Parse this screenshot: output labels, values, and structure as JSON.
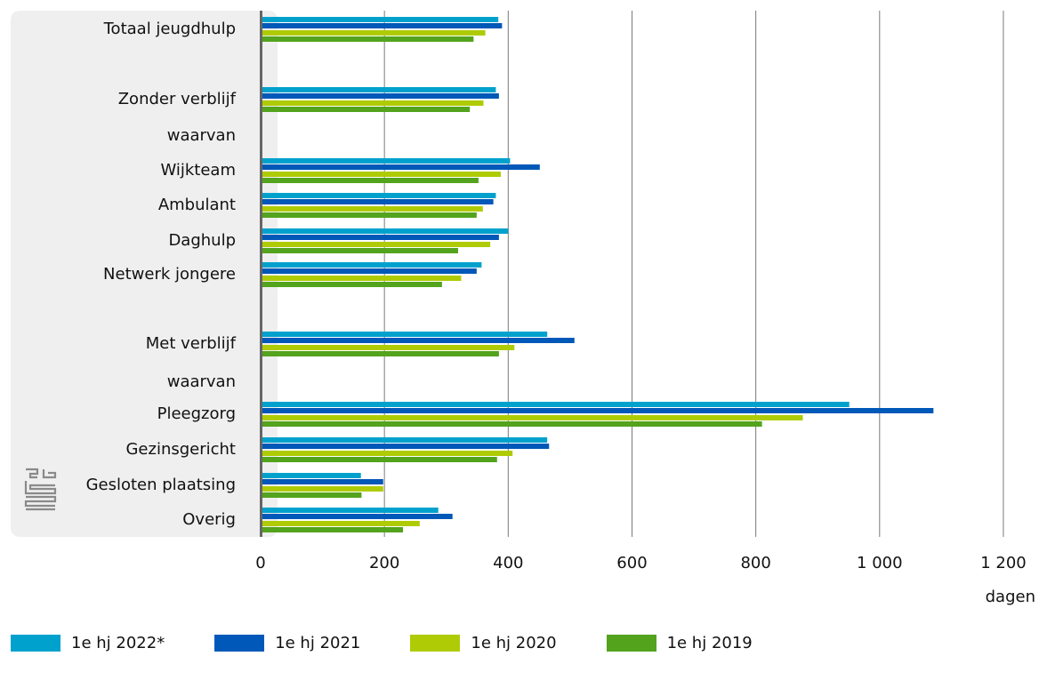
{
  "chart_data": {
    "type": "bar",
    "orientation": "horizontal",
    "categories": [
      "Totaal jeugdhulp",
      "Zonder verblijf",
      "waarvan",
      "Wijkteam",
      "Ambulant",
      "Daghulp",
      "Netwerk jongere",
      "Met verblijf",
      "waarvan",
      "Pleegzorg",
      "Gezinsgericht",
      "Gesloten plaatsing",
      "Overig"
    ],
    "series": [
      {
        "name": "1e hj 2022*",
        "color": "#00a1cd",
        "values": [
          384,
          380,
          null,
          403,
          380,
          400,
          357,
          463,
          null,
          951,
          463,
          162,
          287
        ]
      },
      {
        "name": "1e hj 2021",
        "color": "#0058b8",
        "values": [
          390,
          385,
          null,
          451,
          376,
          385,
          349,
          507,
          null,
          1087,
          466,
          198,
          310
        ]
      },
      {
        "name": "1e hj 2020",
        "color": "#afcb05",
        "values": [
          363,
          360,
          null,
          388,
          359,
          371,
          324,
          410,
          null,
          876,
          407,
          198,
          257
        ]
      },
      {
        "name": "1e hj 2019",
        "color": "#53a31d",
        "values": [
          344,
          338,
          null,
          352,
          349,
          319,
          293,
          385,
          null,
          810,
          382,
          163,
          230
        ]
      }
    ],
    "xticks": [
      0,
      200,
      400,
      600,
      800,
      1000,
      1200
    ],
    "xtick_labels": [
      "0",
      "200",
      "400",
      "600",
      "800",
      "1 000",
      "1 200"
    ],
    "xlim": [
      0,
      1200
    ],
    "xlabel": "dagen",
    "grid": "vertical",
    "legend_position": "bottom"
  },
  "logo": "cbs-logo-icon"
}
